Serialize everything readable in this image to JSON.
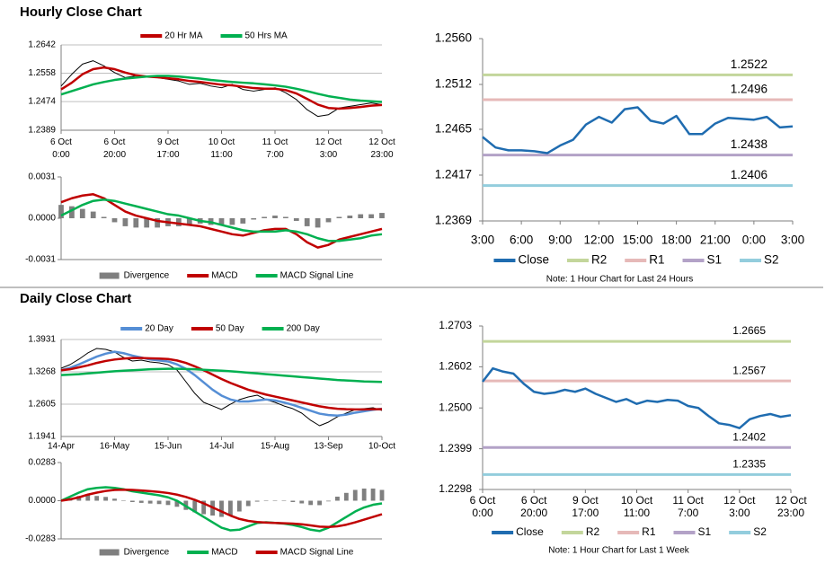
{
  "headings": [
    "Hourly Close Chart",
    "Daily Close Chart"
  ],
  "chart_data": [
    {
      "type": "line",
      "legend": "top",
      "grid": true,
      "ylim": [
        1.2389,
        1.2642
      ],
      "yticks": [
        1.2389,
        1.2474,
        1.2558,
        1.2642
      ],
      "xlim": [
        0,
        30
      ],
      "xticks": [
        {
          "value": 0,
          "label": [
            "6 Oct",
            "0:00"
          ]
        },
        {
          "value": 5,
          "label": [
            "6 Oct",
            "20:00"
          ]
        },
        {
          "value": 10,
          "label": [
            "9 Oct",
            "17:00"
          ]
        },
        {
          "value": 15,
          "label": [
            "10 Oct",
            "11:00"
          ]
        },
        {
          "value": 20,
          "label": [
            "11 Oct",
            "7:00"
          ]
        },
        {
          "value": 25,
          "label": [
            "12 Oct",
            "3:00"
          ]
        },
        {
          "value": 30,
          "label": [
            "12 Oct",
            "23:00"
          ]
        }
      ],
      "series": [
        {
          "color": "#000000",
          "values": [
            1.252,
            1.2555,
            1.2585,
            1.2595,
            1.258,
            1.256,
            1.2545,
            1.255,
            1.2548,
            1.2545,
            1.254,
            1.2535,
            1.2525,
            1.2528,
            1.252,
            1.2515,
            1.2525,
            1.251,
            1.2505,
            1.251,
            1.2515,
            1.25,
            1.248,
            1.245,
            1.243,
            1.2435,
            1.2455,
            1.246,
            1.2465,
            1.247,
            1.2465
          ]
        },
        {
          "name": "20 Hr MA",
          "color": "#c00000",
          "values": [
            1.251,
            1.253,
            1.2555,
            1.257,
            1.2575,
            1.257,
            1.256,
            1.2552,
            1.2548,
            1.2546,
            1.2543,
            1.254,
            1.2535,
            1.2532,
            1.2528,
            1.2524,
            1.2522,
            1.2518,
            1.2514,
            1.2512,
            1.2512,
            1.2508,
            1.2498,
            1.2482,
            1.2465,
            1.2455,
            1.2453,
            1.2455,
            1.2458,
            1.2462,
            1.2464
          ]
        },
        {
          "name": "50 Hrs MA",
          "color": "#00b050",
          "values": [
            1.2495,
            1.2505,
            1.2515,
            1.2525,
            1.2532,
            1.2538,
            1.2542,
            1.2545,
            1.2548,
            1.255,
            1.255,
            1.2548,
            1.2545,
            1.2542,
            1.2538,
            1.2535,
            1.2532,
            1.253,
            1.2528,
            1.2525,
            1.2522,
            1.2518,
            1.2512,
            1.2505,
            1.2497,
            1.249,
            1.2485,
            1.248,
            1.2477,
            1.2475,
            1.2473
          ]
        }
      ]
    },
    {
      "type": "line",
      "legend": "bottom",
      "grid": false,
      "ylim": [
        -0.0031,
        0.0031
      ],
      "yticks": [
        -0.0031,
        {
          "value": 0,
          "label": "0.0000"
        },
        0.0031
      ],
      "xlim": [
        0,
        30
      ],
      "series": [
        {
          "name": "Divergence",
          "type": "bar",
          "color": "#7f7f7f",
          "values": [
            0.001,
            0.0009,
            0.0007,
            0.0005,
            0.0001,
            -0.0003,
            -0.0006,
            -0.0007,
            -0.0007,
            -0.0007,
            -0.0006,
            -0.0006,
            -0.0005,
            -0.0004,
            -0.0005,
            -0.0005,
            -0.0005,
            -0.0004,
            -0.0001,
            0.0001,
            0.0002,
            0.0001,
            -0.0002,
            -0.0006,
            -0.0007,
            -0.0003,
            0.0001,
            0.0002,
            0.0003,
            0.0003,
            0.0004
          ]
        },
        {
          "name": "MACD",
          "color": "#c00000",
          "values": [
            0.0012,
            0.0015,
            0.0017,
            0.0018,
            0.0015,
            0.001,
            0.0005,
            0.0002,
            0.0,
            -0.0002,
            -0.0003,
            -0.0004,
            -0.0005,
            -0.0006,
            -0.0008,
            -0.001,
            -0.0012,
            -0.0013,
            -0.0011,
            -0.0009,
            -0.0008,
            -0.0008,
            -0.0012,
            -0.0018,
            -0.0022,
            -0.002,
            -0.0016,
            -0.0014,
            -0.0012,
            -0.001,
            -0.0008
          ]
        },
        {
          "name": "MACD Signal Line",
          "color": "#00b050",
          "values": [
            0.0002,
            0.0006,
            0.001,
            0.0013,
            0.0014,
            0.0013,
            0.0011,
            0.0009,
            0.0007,
            0.0005,
            0.0003,
            0.0002,
            0.0,
            -0.0002,
            -0.0003,
            -0.0005,
            -0.0007,
            -0.0009,
            -0.001,
            -0.001,
            -0.001,
            -0.0009,
            -0.001,
            -0.0012,
            -0.0015,
            -0.0017,
            -0.0017,
            -0.0016,
            -0.0015,
            -0.0013,
            -0.0012
          ]
        }
      ]
    },
    {
      "type": "line",
      "legend": "bottom",
      "grid": false,
      "ylim": [
        1.2369,
        1.256
      ],
      "yticks": [
        1.2369,
        1.2417,
        1.2465,
        1.2512,
        {
          "value": 1.256,
          "label": "1.2560"
        }
      ],
      "xlim": [
        0,
        24
      ],
      "xticks": [
        {
          "value": 0,
          "label": "3:00"
        },
        {
          "value": 3,
          "label": "6:00"
        },
        {
          "value": 6,
          "label": "9:00"
        },
        {
          "value": 9,
          "label": "12:00"
        },
        {
          "value": 12,
          "label": "15:00"
        },
        {
          "value": 15,
          "label": "18:00"
        },
        {
          "value": 18,
          "label": "21:00"
        },
        {
          "value": 21,
          "label": "0:00"
        },
        {
          "value": 24,
          "label": "3:00"
        }
      ],
      "series": [
        {
          "name": "Close",
          "color": "#1f6cb0",
          "values": [
            1.2457,
            1.2446,
            1.2443,
            1.2443,
            1.2442,
            1.244,
            1.2448,
            1.2454,
            1.247,
            1.2478,
            1.2472,
            1.2486,
            1.2488,
            1.2474,
            1.2471,
            1.2479,
            1.246,
            1.246,
            1.2471,
            1.2477,
            1.2476,
            1.2475,
            1.2478,
            1.2467,
            1.2468
          ]
        }
      ],
      "levels": [
        {
          "name": "R2",
          "color": "#c3d69b",
          "value": 1.2522
        },
        {
          "name": "R1",
          "color": "#e6b9b8",
          "value": 1.2496
        },
        {
          "name": "S1",
          "color": "#b3a2c7",
          "value": 1.2438
        },
        {
          "name": "S2",
          "color": "#93cddd",
          "value": 1.2406
        }
      ],
      "note": "Note: 1 Hour Chart for Last 24 Hours"
    },
    {
      "type": "line",
      "legend": "top",
      "grid": true,
      "ylim": [
        1.1941,
        1.3931
      ],
      "yticks": [
        1.1941,
        1.2605,
        1.3268,
        1.3931
      ],
      "xlim": [
        0,
        36
      ],
      "xticks": [
        {
          "value": 0,
          "label": "14-Apr"
        },
        {
          "value": 6,
          "label": "16-May"
        },
        {
          "value": 12,
          "label": "15-Jun"
        },
        {
          "value": 18,
          "label": "14-Jul"
        },
        {
          "value": 24,
          "label": "15-Aug"
        },
        {
          "value": 30,
          "label": "13-Sep"
        },
        {
          "value": 36,
          "label": "10-Oct"
        }
      ],
      "series": [
        {
          "color": "#000000",
          "values": [
            1.3341,
            1.3415,
            1.3526,
            1.3655,
            1.3747,
            1.3728,
            1.3673,
            1.3563,
            1.3489,
            1.3507,
            1.347,
            1.3452,
            1.3415,
            1.3305,
            1.3065,
            1.2825,
            1.2641,
            1.2568,
            1.2494,
            1.2604,
            1.2697,
            1.2752,
            1.2789,
            1.2697,
            1.2641,
            1.2568,
            1.2512,
            1.242,
            1.2273,
            1.2162,
            1.2236,
            1.2346,
            1.242,
            1.2494,
            1.2512,
            1.2531,
            1.2475
          ]
        },
        {
          "name": "20 Day",
          "color": "#558ed5",
          "values": [
            1.33,
            1.335,
            1.342,
            1.35,
            1.358,
            1.364,
            1.368,
            1.365,
            1.36,
            1.356,
            1.352,
            1.35,
            1.348,
            1.342,
            1.333,
            1.32,
            1.305,
            1.29,
            1.278,
            1.27,
            1.266,
            1.266,
            1.268,
            1.27,
            1.268,
            1.264,
            1.259,
            1.253,
            1.247,
            1.241,
            1.238,
            1.237,
            1.239,
            1.243,
            1.246,
            1.249,
            1.251
          ]
        },
        {
          "name": "50 Day",
          "color": "#c00000",
          "values": [
            1.33,
            1.332,
            1.336,
            1.34,
            1.345,
            1.349,
            1.352,
            1.354,
            1.355,
            1.355,
            1.3545,
            1.354,
            1.353,
            1.35,
            1.345,
            1.338,
            1.33,
            1.321,
            1.312,
            1.304,
            1.297,
            1.29,
            1.285,
            1.28,
            1.276,
            1.272,
            1.268,
            1.264,
            1.26,
            1.256,
            1.253,
            1.251,
            1.25,
            1.2495,
            1.2495,
            1.25,
            1.25
          ]
        },
        {
          "name": "200 Day",
          "color": "#00b050",
          "values": [
            1.32,
            1.321,
            1.322,
            1.3235,
            1.325,
            1.3265,
            1.328,
            1.329,
            1.33,
            1.331,
            1.332,
            1.3325,
            1.333,
            1.333,
            1.3325,
            1.332,
            1.331,
            1.33,
            1.329,
            1.328,
            1.3265,
            1.325,
            1.3235,
            1.322,
            1.3205,
            1.319,
            1.3175,
            1.316,
            1.3145,
            1.313,
            1.3115,
            1.31,
            1.309,
            1.308,
            1.307,
            1.3065,
            1.306
          ]
        }
      ]
    },
    {
      "type": "line",
      "legend": "bottom",
      "grid": false,
      "ylim": [
        -0.0283,
        0.0283
      ],
      "yticks": [
        -0.0283,
        {
          "value": 0,
          "label": "0.0000"
        },
        0.0283
      ],
      "xlim": [
        0,
        36
      ],
      "series": [
        {
          "name": "Divergence",
          "type": "bar",
          "color": "#7f7f7f",
          "values": [
            0.0,
            0.002,
            0.0035,
            0.004,
            0.0035,
            0.0028,
            0.0015,
            0.0003,
            -0.001,
            -0.0016,
            -0.0021,
            -0.0025,
            -0.0032,
            -0.0045,
            -0.0068,
            -0.0086,
            -0.01,
            -0.011,
            -0.012,
            -0.011,
            -0.008,
            -0.004,
            -0.0007,
            0.0002,
            0.0,
            -0.0003,
            -0.001,
            -0.002,
            -0.0032,
            -0.0033,
            -0.0005,
            0.003,
            0.0058,
            0.008,
            0.009,
            0.009,
            0.008
          ]
        },
        {
          "name": "MACD",
          "color": "#00b050",
          "values": [
            0.0,
            0.003,
            0.006,
            0.0085,
            0.0095,
            0.01,
            0.0095,
            0.0085,
            0.007,
            0.006,
            0.005,
            0.004,
            0.0025,
            0.0,
            -0.004,
            -0.008,
            -0.012,
            -0.016,
            -0.02,
            -0.022,
            -0.0215,
            -0.019,
            -0.0165,
            -0.016,
            -0.0165,
            -0.017,
            -0.018,
            -0.0195,
            -0.0215,
            -0.0225,
            -0.02,
            -0.016,
            -0.012,
            -0.008,
            -0.005,
            -0.003,
            -0.002
          ]
        },
        {
          "name": "MACD Signal Line",
          "color": "#c00000",
          "values": [
            0.0,
            0.001,
            0.0025,
            0.0045,
            0.006,
            0.0072,
            0.008,
            0.0082,
            0.008,
            0.0076,
            0.0071,
            0.0065,
            0.0057,
            0.0045,
            0.0028,
            0.0006,
            -0.002,
            -0.005,
            -0.008,
            -0.011,
            -0.0135,
            -0.015,
            -0.0158,
            -0.0162,
            -0.0165,
            -0.0167,
            -0.017,
            -0.0175,
            -0.0183,
            -0.0192,
            -0.0195,
            -0.019,
            -0.0178,
            -0.016,
            -0.014,
            -0.012,
            -0.01
          ]
        }
      ]
    },
    {
      "type": "line",
      "legend": "bottom",
      "grid": false,
      "ylim": [
        1.2298,
        1.2703
      ],
      "yticks": [
        1.2298,
        1.2399,
        {
          "value": 1.25,
          "label": "1.2500"
        },
        1.2602,
        1.2703
      ],
      "xlim": [
        0,
        30
      ],
      "xticks": [
        {
          "value": 0,
          "label": [
            "6 Oct",
            "0:00"
          ]
        },
        {
          "value": 5,
          "label": [
            "6 Oct",
            "20:00"
          ]
        },
        {
          "value": 10,
          "label": [
            "9 Oct",
            "17:00"
          ]
        },
        {
          "value": 15,
          "label": [
            "10 Oct",
            "11:00"
          ]
        },
        {
          "value": 20,
          "label": [
            "11 Oct",
            "7:00"
          ]
        },
        {
          "value": 25,
          "label": [
            "12 Oct",
            "3:00"
          ]
        },
        {
          "value": 30,
          "label": [
            "12 Oct",
            "23:00"
          ]
        }
      ],
      "series": [
        {
          "name": "Close",
          "color": "#1f6cb0",
          "values": [
            1.2565,
            1.2598,
            1.259,
            1.2585,
            1.256,
            1.254,
            1.2535,
            1.2538,
            1.2545,
            1.254,
            1.2548,
            1.2535,
            1.2525,
            1.2515,
            1.2522,
            1.251,
            1.2518,
            1.2515,
            1.252,
            1.2518,
            1.2505,
            1.25,
            1.248,
            1.2462,
            1.2458,
            1.245,
            1.2472,
            1.248,
            1.2485,
            1.2478,
            1.2482
          ]
        }
      ],
      "levels": [
        {
          "name": "R2",
          "color": "#c3d69b",
          "value": 1.2665
        },
        {
          "name": "R1",
          "color": "#e6b9b8",
          "value": 1.2567
        },
        {
          "name": "S1",
          "color": "#b3a2c7",
          "value": 1.2402
        },
        {
          "name": "S2",
          "color": "#93cddd",
          "value": 1.2335
        }
      ],
      "note": "Note: 1 Hour Chart for Last 1 Week"
    }
  ]
}
